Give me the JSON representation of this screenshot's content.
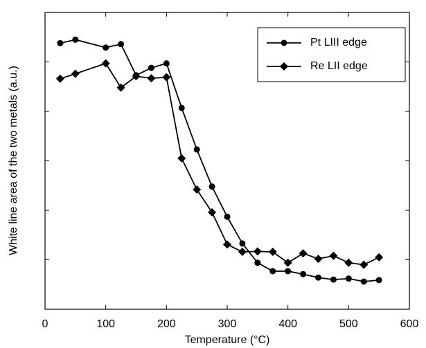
{
  "chart_data": {
    "type": "line",
    "x_label": "Temperature (°C)",
    "y_label": "White line area of the two metals (a.u.)",
    "xlim": [
      0,
      600
    ],
    "xticks": [
      0,
      100,
      200,
      300,
      400,
      500,
      600
    ],
    "ylim": [
      0,
      6
    ],
    "yticks": [
      1,
      2,
      3,
      4,
      5
    ],
    "legend": "upper right",
    "series": [
      {
        "name": "Pt LIII edge",
        "color": "#000000",
        "marker": "circle",
        "x": [
          25,
          50,
          100,
          125,
          150,
          175,
          200,
          225,
          250,
          275,
          300,
          325,
          350,
          375,
          400,
          425,
          450,
          475,
          500,
          525,
          550
        ],
        "values": [
          5.38,
          5.45,
          5.29,
          5.36,
          4.73,
          4.88,
          4.97,
          4.07,
          3.23,
          2.48,
          1.87,
          1.33,
          0.94,
          0.77,
          0.77,
          0.71,
          0.64,
          0.6,
          0.62,
          0.56,
          0.59
        ]
      },
      {
        "name": "Re LII edge",
        "color": "#000000",
        "marker": "diamond",
        "x": [
          25,
          50,
          100,
          125,
          150,
          175,
          200,
          225,
          250,
          275,
          300,
          325,
          350,
          375,
          400,
          425,
          450,
          475,
          500,
          525,
          550
        ],
        "values": [
          4.66,
          4.76,
          4.97,
          4.48,
          4.71,
          4.67,
          4.69,
          3.05,
          2.42,
          1.96,
          1.31,
          1.16,
          1.17,
          1.16,
          0.94,
          1.13,
          1.02,
          1.08,
          0.94,
          0.9,
          1.05
        ]
      }
    ]
  }
}
